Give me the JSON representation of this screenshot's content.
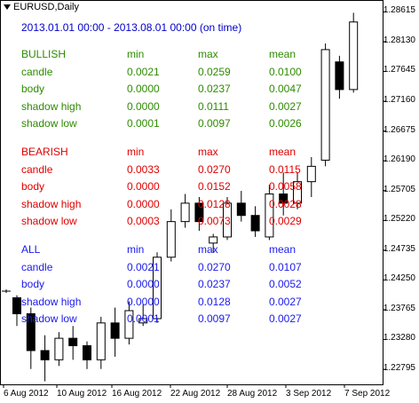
{
  "chart_header": {
    "symbol_label": "EURUSD,Daily",
    "period_label": "2013.01.01 00:00 - 2013.08.01 00:00 (on time)"
  },
  "stats": {
    "columns": [
      "min",
      "max",
      "mean"
    ],
    "groups": [
      {
        "title": "BULLISH",
        "color": "#2e8b00",
        "rows": [
          {
            "label": "candle",
            "min": "0.0021",
            "max": "0.0259",
            "mean": "0.0100"
          },
          {
            "label": "body",
            "min": "0.0000",
            "max": "0.0237",
            "mean": "0.0047"
          },
          {
            "label": "shadow high",
            "min": "0.0000",
            "max": "0.0111",
            "mean": "0.0027"
          },
          {
            "label": "shadow low",
            "min": "0.0001",
            "max": "0.0097",
            "mean": "0.0026"
          }
        ]
      },
      {
        "title": "BEARISH",
        "color": "#e00000",
        "rows": [
          {
            "label": "candle",
            "min": "0.0033",
            "max": "0.0270",
            "mean": "0.0115"
          },
          {
            "label": "body",
            "min": "0.0000",
            "max": "0.0152",
            "mean": "0.0058"
          },
          {
            "label": "shadow high",
            "min": "0.0000",
            "max": "0.0128",
            "mean": "0.0028"
          },
          {
            "label": "shadow low",
            "min": "0.0003",
            "max": "0.0073",
            "mean": "0.0029"
          }
        ]
      },
      {
        "title": "ALL",
        "color": "#1a1aee",
        "rows": [
          {
            "label": "candle",
            "min": "0.0021",
            "max": "0.0270",
            "mean": "0.0107"
          },
          {
            "label": "body",
            "min": "0.0000",
            "max": "0.0237",
            "mean": "0.0052"
          },
          {
            "label": "shadow high",
            "min": "0.0000",
            "max": "0.0128",
            "mean": "0.0027"
          },
          {
            "label": "shadow low",
            "min": "0.0001",
            "max": "0.0097",
            "mean": "0.0027"
          }
        ]
      }
    ]
  },
  "chart_data": {
    "type": "candlestick",
    "y_axis_ticks": [
      "1.28615",
      "1.28130",
      "1.27645",
      "1.27160",
      "1.26675",
      "1.26190",
      "1.25705",
      "1.25220",
      "1.24735",
      "1.24250",
      "1.23765",
      "1.23280",
      "1.22795"
    ],
    "x_axis_ticks": [
      "6 Aug 2012",
      "10 Aug 2012",
      "16 Aug 2012",
      "22 Aug 2012",
      "28 Aug 2012",
      "3 Sep 2012",
      "7 Sep 2012"
    ],
    "ylim": [
      1.2255,
      1.2875
    ],
    "colors": {
      "bull": "#ffffff",
      "bear": "#000000",
      "wick": "#000000"
    },
    "candles": [
      {
        "o": 1.2396,
        "h": 1.24,
        "l": 1.235,
        "c": 1.237
      },
      {
        "o": 1.237,
        "h": 1.238,
        "l": 1.228,
        "c": 1.231
      },
      {
        "o": 1.231,
        "h": 1.2335,
        "l": 1.226,
        "c": 1.2295
      },
      {
        "o": 1.2295,
        "h": 1.234,
        "l": 1.2285,
        "c": 1.233
      },
      {
        "o": 1.233,
        "h": 1.235,
        "l": 1.2295,
        "c": 1.2318
      },
      {
        "o": 1.2318,
        "h": 1.2325,
        "l": 1.228,
        "c": 1.2295
      },
      {
        "o": 1.2295,
        "h": 1.2365,
        "l": 1.228,
        "c": 1.2355
      },
      {
        "o": 1.2355,
        "h": 1.238,
        "l": 1.23,
        "c": 1.233
      },
      {
        "o": 1.233,
        "h": 1.239,
        "l": 1.232,
        "c": 1.2375
      },
      {
        "o": 1.2355,
        "h": 1.2385,
        "l": 1.235,
        "c": 1.2362
      },
      {
        "o": 1.2362,
        "h": 1.247,
        "l": 1.2355,
        "c": 1.2462
      },
      {
        "o": 1.2462,
        "h": 1.254,
        "l": 1.2455,
        "c": 1.252
      },
      {
        "o": 1.252,
        "h": 1.2565,
        "l": 1.251,
        "c": 1.255
      },
      {
        "o": 1.255,
        "h": 1.256,
        "l": 1.2505,
        "c": 1.252
      },
      {
        "o": 1.2485,
        "h": 1.25,
        "l": 1.247,
        "c": 1.2495
      },
      {
        "o": 1.2495,
        "h": 1.256,
        "l": 1.249,
        "c": 1.255
      },
      {
        "o": 1.255,
        "h": 1.257,
        "l": 1.252,
        "c": 1.253
      },
      {
        "o": 1.253,
        "h": 1.2545,
        "l": 1.2495,
        "c": 1.2505
      },
      {
        "o": 1.2495,
        "h": 1.258,
        "l": 1.249,
        "c": 1.2565
      },
      {
        "o": 1.2565,
        "h": 1.26,
        "l": 1.253,
        "c": 1.255
      },
      {
        "o": 1.255,
        "h": 1.26,
        "l": 1.254,
        "c": 1.2585
      },
      {
        "o": 1.2585,
        "h": 1.2625,
        "l": 1.256,
        "c": 1.261
      },
      {
        "o": 1.262,
        "h": 1.281,
        "l": 1.261,
        "c": 1.28
      },
      {
        "o": 1.278,
        "h": 1.279,
        "l": 1.272,
        "c": 1.2735
      },
      {
        "o": 1.2735,
        "h": 1.286,
        "l": 1.273,
        "c": 1.2845
      }
    ]
  }
}
